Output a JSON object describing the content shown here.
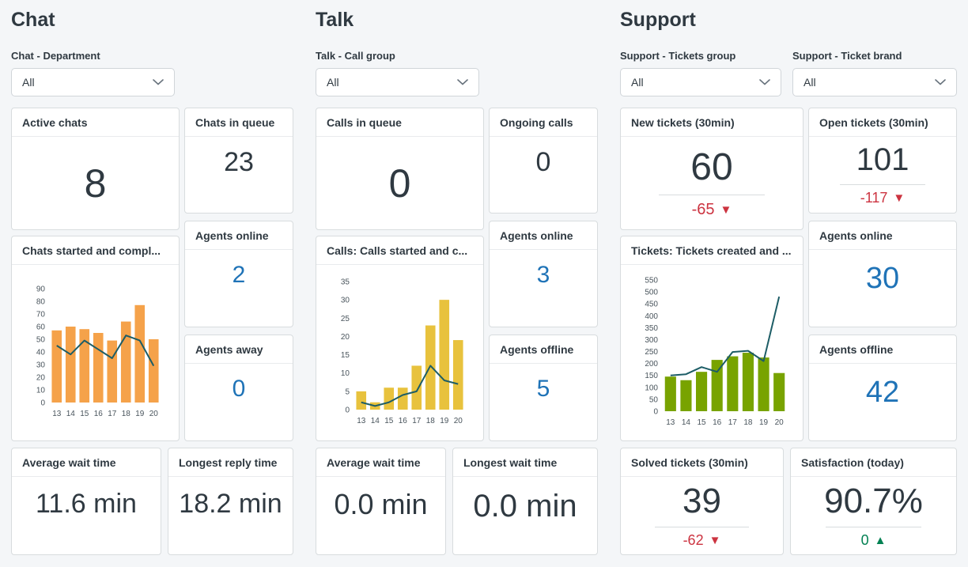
{
  "colors": {
    "accent_blue": "#1f73b7",
    "negative_red": "#cc3340",
    "positive_green": "#038153",
    "chat_bar_orange": "#f5a24a",
    "talk_bar_yellow": "#e8c23d",
    "support_bar_green": "#78a300",
    "line_teal": "#1d5d66"
  },
  "chat": {
    "title": "Chat",
    "filter": {
      "label": "Chat - Department",
      "value": "All"
    },
    "active_chats": {
      "title": "Active chats",
      "value": "8"
    },
    "chats_in_queue": {
      "title": "Chats in queue",
      "value": "23"
    },
    "agents_online": {
      "title": "Agents online",
      "value": "2"
    },
    "agents_away": {
      "title": "Agents away",
      "value": "0"
    },
    "average_wait_time": {
      "title": "Average wait time",
      "value": "11.6 min"
    },
    "longest_reply_time": {
      "title": "Longest reply time",
      "value": "18.2 min"
    }
  },
  "talk": {
    "title": "Talk",
    "filter": {
      "label": "Talk - Call group",
      "value": "All"
    },
    "calls_in_queue": {
      "title": "Calls in queue",
      "value": "0"
    },
    "ongoing_calls": {
      "title": "Ongoing calls",
      "value": "0"
    },
    "agents_online": {
      "title": "Agents online",
      "value": "3"
    },
    "agents_offline": {
      "title": "Agents offline",
      "value": "5"
    },
    "average_wait_time": {
      "title": "Average wait time",
      "value": "0.0 min"
    },
    "longest_wait_time": {
      "title": "Longest wait time",
      "value": "0.0 min"
    }
  },
  "support": {
    "title": "Support",
    "filter_group": {
      "label": "Support - Tickets group",
      "value": "All"
    },
    "filter_brand": {
      "label": "Support - Ticket brand",
      "value": "All"
    },
    "new_tickets": {
      "title": "New tickets (30min)",
      "value": "60",
      "delta": "-65",
      "delta_arrow": "▼"
    },
    "open_tickets": {
      "title": "Open tickets (30min)",
      "value": "101",
      "delta": "-117",
      "delta_arrow": "▼"
    },
    "agents_online": {
      "title": "Agents online",
      "value": "30"
    },
    "agents_offline": {
      "title": "Agents offline",
      "value": "42"
    },
    "solved_tickets": {
      "title": "Solved tickets (30min)",
      "value": "39",
      "delta": "-62",
      "delta_arrow": "▼"
    },
    "satisfaction": {
      "title": "Satisfaction (today)",
      "value": "90.7%",
      "delta": "0",
      "delta_arrow": "▲"
    }
  },
  "chart_data": [
    {
      "id": "chat-started-completed",
      "type": "bar",
      "title": "Chats started and compl...",
      "categories": [
        "13",
        "14",
        "15",
        "16",
        "17",
        "18",
        "19",
        "20"
      ],
      "series": [
        {
          "name": "bars",
          "type": "bar",
          "color": "#f5a24a",
          "values": [
            57,
            60,
            58,
            55,
            49,
            64,
            77,
            50
          ]
        },
        {
          "name": "line",
          "type": "line",
          "color": "#1d5d66",
          "values": [
            45,
            38,
            49,
            42,
            35,
            53,
            49,
            29
          ]
        }
      ],
      "ylim": [
        0,
        90
      ],
      "ystep": 10,
      "grid": false,
      "legend": "none"
    },
    {
      "id": "talk-started-completed",
      "type": "bar",
      "title": "Calls: Calls started and c...",
      "categories": [
        "13",
        "14",
        "15",
        "16",
        "17",
        "18",
        "19",
        "20"
      ],
      "series": [
        {
          "name": "bars",
          "type": "bar",
          "color": "#e8c23d",
          "values": [
            5,
            2,
            6,
            6,
            12,
            23,
            30,
            19
          ]
        },
        {
          "name": "line",
          "type": "line",
          "color": "#1d5d66",
          "values": [
            2,
            1,
            2,
            4,
            5,
            12,
            8,
            7
          ]
        }
      ],
      "ylim": [
        0,
        35
      ],
      "ystep": 5,
      "grid": false,
      "legend": "none"
    },
    {
      "id": "support-created-solved",
      "type": "bar",
      "title": "Tickets: Tickets created and ...",
      "categories": [
        "13",
        "14",
        "15",
        "16",
        "17",
        "18",
        "19",
        "20"
      ],
      "series": [
        {
          "name": "bars",
          "type": "bar",
          "color": "#78a300",
          "values": [
            145,
            130,
            165,
            215,
            230,
            245,
            225,
            160
          ]
        },
        {
          "name": "line",
          "type": "line",
          "color": "#1d5d66",
          "values": [
            150,
            155,
            185,
            165,
            248,
            253,
            210,
            480
          ]
        }
      ],
      "ylim": [
        0,
        550
      ],
      "ystep": 50,
      "grid": false,
      "legend": "none"
    }
  ]
}
